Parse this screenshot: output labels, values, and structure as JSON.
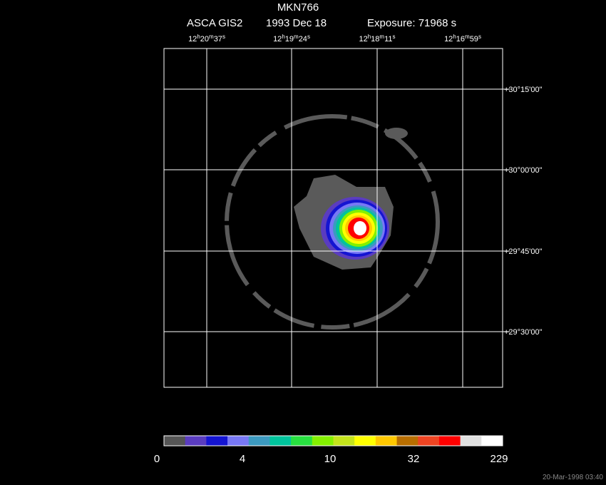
{
  "header": {
    "title": "MKN766",
    "instrument": "ASCA GIS2",
    "date": "1993 Dec 18",
    "exposure": "Exposure: 71968 s"
  },
  "ra_labels": [
    [
      "12",
      "h",
      "20",
      "m",
      "37",
      "s"
    ],
    [
      "12",
      "h",
      "19",
      "m",
      "24",
      "s"
    ],
    [
      "12",
      "h",
      "18",
      "m",
      "11",
      "s"
    ],
    [
      "12",
      "h",
      "16",
      "m",
      "59",
      "s"
    ]
  ],
  "dec_labels": [
    "+30°15'00\"",
    "+30°00'00\"",
    "+29°45'00\"",
    "+29°30'00\""
  ],
  "colorbar": {
    "colors": [
      "#555555",
      "#5a3cc0",
      "#1414d2",
      "#7878f5",
      "#3c9ac0",
      "#00c49c",
      "#28e040",
      "#84f000",
      "#c4e41c",
      "#ffff00",
      "#ffc800",
      "#b86e00",
      "#ee4422",
      "#ff0000",
      "#e0e0e0",
      "#ffffff"
    ],
    "ticks": [
      "0",
      "4",
      "10",
      "32",
      "229"
    ]
  },
  "footer": "20-Mar-1998 03:40"
}
